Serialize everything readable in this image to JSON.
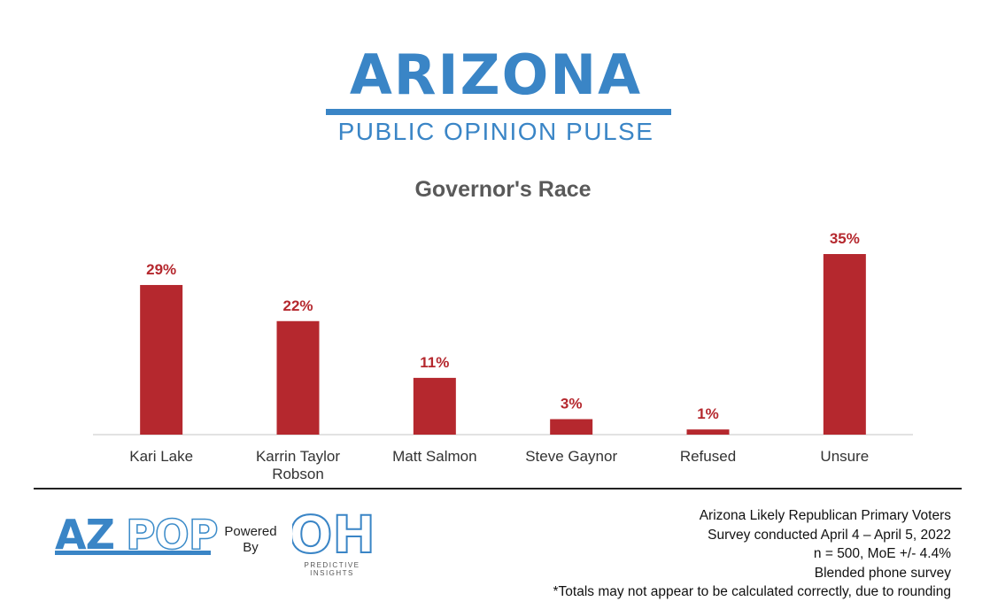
{
  "brand": {
    "title": "ARIZONA",
    "subtitle": "PUBLIC OPINION PULSE",
    "color": "#3a85c6"
  },
  "chart_data": {
    "type": "bar",
    "title": "Governor's Race",
    "categories": [
      "Kari Lake",
      "Karrin Taylor Robson",
      "Matt Salmon",
      "Steve Gaynor",
      "Refused",
      "Unsure"
    ],
    "category_lines": [
      [
        "Kari Lake"
      ],
      [
        "Karrin Taylor",
        "Robson"
      ],
      [
        "Matt Salmon"
      ],
      [
        "Steve Gaynor"
      ],
      [
        "Refused"
      ],
      [
        "Unsure"
      ]
    ],
    "values": [
      29,
      22,
      11,
      3,
      1,
      35
    ],
    "value_labels": [
      "29%",
      "22%",
      "11%",
      "3%",
      "1%",
      "35%"
    ],
    "ylim": [
      0,
      35
    ],
    "grid": false,
    "legend": "none",
    "bar_color": "#b5282e",
    "label_color": "#b5282e"
  },
  "footer": {
    "azpop_solid": "AZ",
    "azpop_outline": "POP",
    "powered_by_line1": "Powered",
    "powered_by_line2": "By",
    "oh_logo_text": "OH",
    "oh_caption_line1": "PREDICTIVE",
    "oh_caption_line2": "INSIGHTS",
    "notes": [
      "Arizona Likely Republican Primary Voters",
      "Survey conducted April 4 – April 5, 2022",
      "n = 500, MoE +/- 4.4%",
      "Blended phone survey",
      "*Totals may not appear to be calculated correctly, due to rounding"
    ]
  }
}
